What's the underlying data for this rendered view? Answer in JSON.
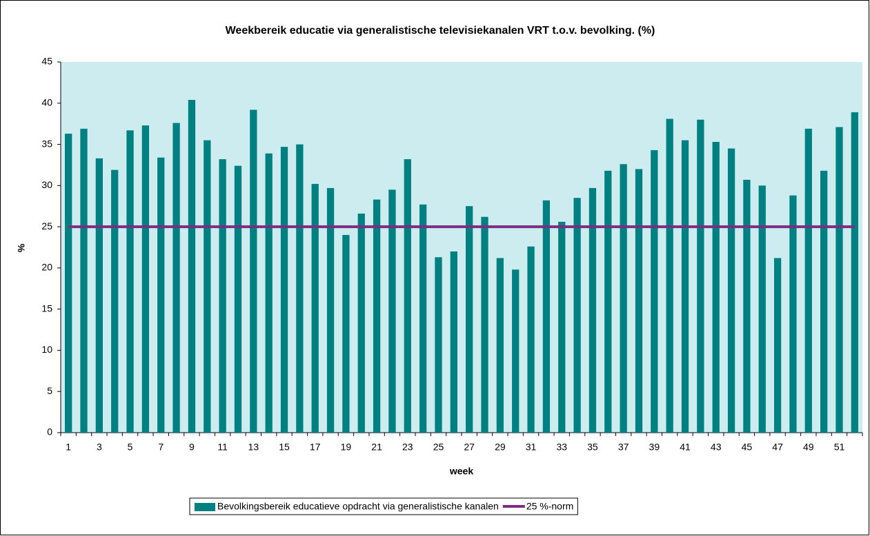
{
  "chart_data": {
    "type": "bar",
    "title": "Weekbereik educatie via generalistische televisiekanalen VRT t.o.v. bevolking. (%)",
    "x_label": "week",
    "y_label": "%",
    "categories": [
      "1",
      null,
      "3",
      null,
      "5",
      null,
      "7",
      null,
      "9",
      null,
      "11",
      null,
      "13",
      null,
      "15",
      null,
      "17",
      null,
      "19",
      null,
      "21",
      null,
      "23",
      null,
      "25",
      null,
      "27",
      null,
      "29",
      null,
      "31",
      null,
      "33",
      null,
      "35",
      null,
      "37",
      null,
      "39",
      null,
      "41",
      null,
      "43",
      null,
      "45",
      null,
      "47",
      null,
      "49",
      null,
      "51",
      null
    ],
    "series": [
      {
        "name": "Bevolkingsbereik educatieve opdracht via generalistische kanalen",
        "type": "bar",
        "color": "#008080",
        "values": [
          36.3,
          36.9,
          33.3,
          31.9,
          36.7,
          37.3,
          33.4,
          37.6,
          40.4,
          35.5,
          33.2,
          32.4,
          39.2,
          33.9,
          34.7,
          35.0,
          30.2,
          29.7,
          24.0,
          26.6,
          28.3,
          29.5,
          33.2,
          27.7,
          21.3,
          22.0,
          27.5,
          26.2,
          21.2,
          19.8,
          22.6,
          28.2,
          25.6,
          28.5,
          29.7,
          31.8,
          32.6,
          32.0,
          34.3,
          38.1,
          35.5,
          38.0,
          35.3,
          34.5,
          30.7,
          30.0,
          21.2,
          28.8,
          36.9,
          31.8,
          37.1,
          38.9
        ]
      },
      {
        "name": "25 %-norm",
        "type": "line",
        "color": "#7b2c83",
        "values": [
          25,
          25,
          25,
          25,
          25,
          25,
          25,
          25,
          25,
          25,
          25,
          25,
          25,
          25,
          25,
          25,
          25,
          25,
          25,
          25,
          25,
          25,
          25,
          25,
          25,
          25,
          25,
          25,
          25,
          25,
          25,
          25,
          25,
          25,
          25,
          25,
          25,
          25,
          25,
          25,
          25,
          25,
          25,
          25,
          25,
          25,
          25,
          25,
          25,
          25,
          25,
          25
        ]
      }
    ],
    "ylim": [
      0,
      45
    ],
    "yticks": [
      0,
      5,
      10,
      15,
      20,
      25,
      30,
      35,
      40,
      45
    ],
    "grid": false,
    "plot_background": "#cdecef",
    "legend": "bottom"
  }
}
